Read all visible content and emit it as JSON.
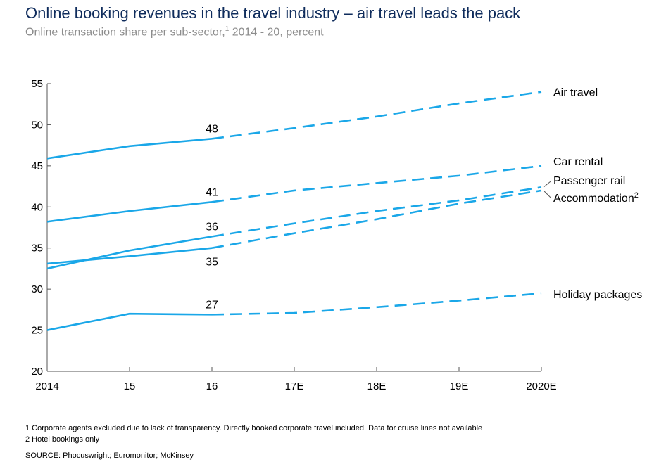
{
  "title": "Online booking revenues in the travel industry – air travel leads the pack",
  "subtitle": "Online transaction share per sub-sector,",
  "subtitle_sup": "1",
  "subtitle_tail": " 2014 - 20, percent",
  "colors": {
    "line": "#1aa7e8",
    "axis": "#555555",
    "title": "#0f2c5c"
  },
  "chart_data": {
    "type": "line",
    "x": [
      "2014",
      "15",
      "16",
      "17E",
      "18E",
      "19E",
      "2020E"
    ],
    "ylim": [
      20,
      55
    ],
    "yticks": [
      20,
      25,
      30,
      35,
      40,
      45,
      50,
      55
    ],
    "actual_through": "16",
    "series": [
      {
        "name": "Air travel",
        "sup": "",
        "values": [
          45.9,
          47.4,
          48.3,
          49.6,
          51.0,
          52.6,
          54.0
        ],
        "label_16": "48"
      },
      {
        "name": "Car rental",
        "sup": "",
        "values": [
          38.2,
          39.5,
          40.6,
          42.0,
          42.9,
          43.8,
          45.0
        ],
        "label_16": "41"
      },
      {
        "name": "Passenger rail",
        "sup": "",
        "values": [
          32.5,
          34.7,
          36.4,
          38.0,
          39.5,
          40.8,
          42.4
        ],
        "label_16": "36"
      },
      {
        "name": "Accommodation",
        "sup": "2",
        "values": [
          33.1,
          34.0,
          35.0,
          36.8,
          38.5,
          40.4,
          42.0
        ],
        "label_16": "35"
      },
      {
        "name": "Holiday packages",
        "sup": "",
        "values": [
          25.0,
          27.0,
          26.9,
          27.1,
          27.8,
          28.6,
          29.5
        ],
        "label_16": "27"
      }
    ]
  },
  "footnotes": {
    "note1": "1 Corporate agents excluded due to lack of transparency. Directly booked corporate travel included. Data for cruise lines not available",
    "note2": "2 Hotel bookings only",
    "source": "SOURCE: Phocuswright; Euromonitor; McKinsey"
  }
}
